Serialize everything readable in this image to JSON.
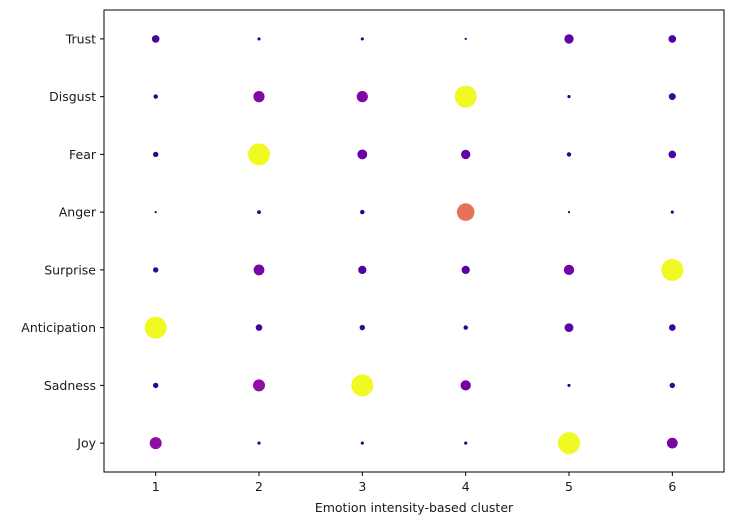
{
  "chart_data": {
    "type": "scatter",
    "title": "",
    "xlabel": "Emotion intensity-based cluster",
    "ylabel": "",
    "x_categories": [
      1,
      2,
      3,
      4,
      5,
      6
    ],
    "y_categories": [
      "Joy",
      "Sadness",
      "Anticipation",
      "Surprise",
      "Anger",
      "Fear",
      "Disgust",
      "Trust"
    ],
    "xlim": [
      0.5,
      6.5
    ],
    "grid": false,
    "legend": "none",
    "colormap": "plasma",
    "values": [
      [
        0.3,
        0.02,
        0.02,
        0.02,
        1.0,
        0.24
      ],
      [
        0.06,
        0.3,
        1.0,
        0.22,
        0.02,
        0.06
      ],
      [
        1.0,
        0.09,
        0.06,
        0.04,
        0.16,
        0.09
      ],
      [
        0.06,
        0.24,
        0.14,
        0.14,
        0.22,
        1.0
      ],
      [
        0.01,
        0.03,
        0.04,
        0.64,
        0.01,
        0.02
      ],
      [
        0.06,
        1.0,
        0.2,
        0.18,
        0.04,
        0.12
      ],
      [
        0.04,
        0.26,
        0.26,
        1.0,
        0.02,
        0.1
      ],
      [
        0.12,
        0.02,
        0.02,
        0.01,
        0.18,
        0.12
      ]
    ]
  }
}
